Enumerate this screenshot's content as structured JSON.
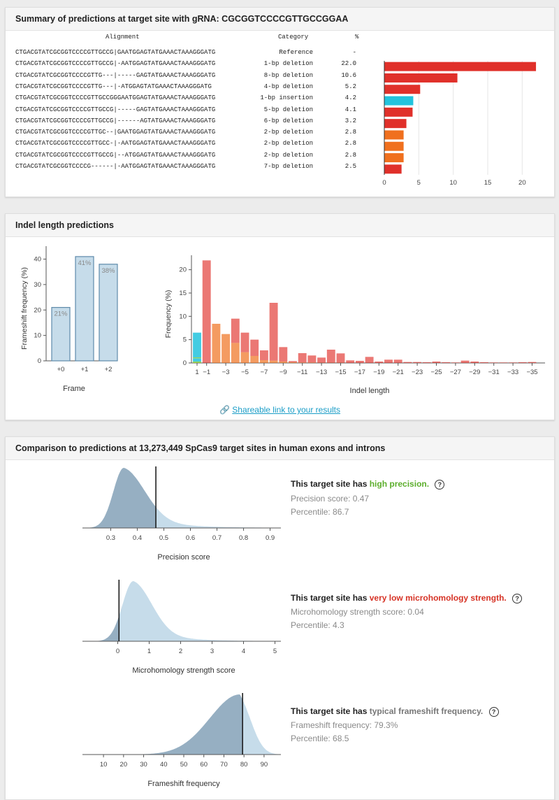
{
  "summary": {
    "title": "Summary of predictions at target site with gRNA: CGCGGTCCCCGTTGCCGGAA",
    "col_alignment": "Alignment",
    "col_category": "Category",
    "col_pct": "%",
    "rows": [
      {
        "alignment": "CTGACGTATCGCGGTCCCCGTTGCCG|GAATGGAGTATGAAACTAAAGGGATG",
        "category": "Reference",
        "pct": "-"
      },
      {
        "alignment": "CTGACGTATCGCGGTCCCCGTTGCCG|-AATGGAGTATGAAACTAAAGGGATG",
        "category": "1-bp deletion",
        "pct": "22.0"
      },
      {
        "alignment": "CTGACGTATCGCGGTCCCCGTTG---|-----GAGTATGAAACTAAAGGGATG",
        "category": "8-bp deletion",
        "pct": "10.6"
      },
      {
        "alignment": "CTGACGTATCGCGGTCCCCGTTG---|-ATGGAGTATGAAACTAAAGGGATG",
        "category": "4-bp deletion",
        "pct": "5.2"
      },
      {
        "alignment": "CTGACGTATCGCGGTCCCCGTTGCCGGGAATGGAGTATGAAACTAAAGGGATG",
        "category": "1-bp insertion",
        "pct": "4.2"
      },
      {
        "alignment": "CTGACGTATCGCGGTCCCCGTTGCCG|-----GAGTATGAAACTAAAGGGATG",
        "category": "5-bp deletion",
        "pct": "4.1"
      },
      {
        "alignment": "CTGACGTATCGCGGTCCCCGTTGCCG|------AGTATGAAACTAAAGGGATG",
        "category": "6-bp deletion",
        "pct": "3.2"
      },
      {
        "alignment": "CTGACGTATCGCGGTCCCCGTTGC--|GAATGGAGTATGAAACTAAAGGGATG",
        "category": "2-bp deletion",
        "pct": "2.8"
      },
      {
        "alignment": "CTGACGTATCGCGGTCCCCGTTGCC-|-AATGGAGTATGAAACTAAAGGGATG",
        "category": "2-bp deletion",
        "pct": "2.8"
      },
      {
        "alignment": "CTGACGTATCGCGGTCCCCGTTGCCG|--ATGGAGTATGAAACTAAAGGGATG",
        "category": "2-bp deletion",
        "pct": "2.8"
      },
      {
        "alignment": "CTGACGTATCGCGGTCCCCG------|-AATGGAGTATGAAACTAAAGGGATG",
        "category": "7-bp deletion",
        "pct": "2.5"
      }
    ]
  },
  "indel": {
    "title": "Indel length predictions",
    "share_link": "Shareable link to your results",
    "share_icon": "link-icon"
  },
  "comparison": {
    "title": "Comparison to predictions at 13,273,449 SpCas9 target sites in human exons and introns",
    "prefix": "This target site has",
    "items": [
      {
        "highlight": "high precision.",
        "line1": "Precision score: 0.47",
        "line2": "Percentile: 86.7"
      },
      {
        "highlight": "very low microhomology strength.",
        "line1": "Microhomology strength score: 0.04",
        "line2": "Percentile: 4.3"
      },
      {
        "highlight": "typical frameshift frequency.",
        "line1": "Frameshift frequency: 79.3%",
        "line2": "Percentile: 68.5"
      }
    ],
    "help_glyph": "?"
  },
  "colors": {
    "red": "#e0302a",
    "orange": "#f0701e",
    "cyan": "#22c3dd",
    "green": "#8ccc3c",
    "density_dark": "#96afc2",
    "density_light": "#c6dcea"
  },
  "chart_data": [
    {
      "type": "bar",
      "orientation": "horizontal",
      "categories": [
        "1-bp deletion",
        "8-bp deletion",
        "4-bp deletion",
        "1-bp insertion",
        "5-bp deletion",
        "6-bp deletion",
        "2-bp deletion",
        "2-bp deletion",
        "2-bp deletion",
        "7-bp deletion"
      ],
      "values": [
        22.0,
        10.6,
        5.2,
        4.2,
        4.1,
        3.2,
        2.8,
        2.8,
        2.8,
        2.5
      ],
      "colors": [
        "red",
        "red",
        "red",
        "cyan",
        "red",
        "red",
        "orange",
        "orange",
        "orange",
        "red"
      ],
      "xlim": [
        0,
        22.5
      ],
      "xticks": [
        0,
        5,
        10,
        15,
        20
      ]
    },
    {
      "type": "bar",
      "title": "",
      "categories": [
        "+0",
        "+1",
        "+2"
      ],
      "values": [
        21,
        41,
        38
      ],
      "data_labels": [
        "21%",
        "41%",
        "38%"
      ],
      "ylabel": "Frameshift frequency (%)",
      "xlabel": "Frame",
      "ylim": [
        0,
        44
      ],
      "yticks": [
        0,
        10,
        20,
        30,
        40
      ]
    },
    {
      "type": "bar",
      "stacked": true,
      "xlabel": "Indel length",
      "ylabel": "Frequency (%)",
      "ylim": [
        0,
        22.5
      ],
      "yticks": [
        0,
        5,
        10,
        15,
        20
      ],
      "xticks": [
        "1",
        "−1",
        "−3",
        "−5",
        "−7",
        "−9",
        "−11",
        "−13",
        "−15",
        "−17",
        "−19",
        "−21",
        "−23",
        "−25",
        "−27",
        "−29",
        "−31",
        "−33",
        "−35"
      ],
      "insertion": {
        "x": "1",
        "segments": [
          {
            "color": "green",
            "value": 0.3
          },
          {
            "color": "cyan",
            "value": 0.7
          },
          {
            "color": "green",
            "value": 0.2
          },
          {
            "color": "cyan",
            "value": 5.3
          }
        ]
      },
      "deletions": {
        "x": [
          -1,
          -2,
          -3,
          -4,
          -5,
          -6,
          -7,
          -8,
          -9,
          -10,
          -11,
          -12,
          -13,
          -14,
          -15,
          -16,
          -17,
          -18,
          -19,
          -20,
          -21,
          -22,
          -23,
          -24,
          -25,
          -26,
          -27,
          -28,
          -29,
          -30,
          -31,
          -32,
          -33,
          -34,
          -35
        ],
        "orange": [
          0,
          8.4,
          6.2,
          4.3,
          2.3,
          1.5,
          0.6,
          0.5,
          0.3,
          0.15,
          0.1,
          0.1,
          0.05,
          0.05,
          0.05,
          0,
          0,
          0,
          0,
          0,
          0,
          0,
          0,
          0,
          0,
          0,
          0,
          0,
          0,
          0,
          0,
          0,
          0,
          0,
          0
        ],
        "red": [
          22.0,
          0,
          0,
          5.2,
          4.2,
          3.5,
          2.1,
          12.4,
          3.1,
          0.25,
          2.0,
          1.5,
          1.1,
          2.8,
          2.0,
          0.55,
          0.45,
          1.3,
          0.3,
          0.7,
          0.7,
          0.2,
          0.2,
          0.15,
          0.3,
          0.15,
          0.1,
          0.5,
          0.3,
          0.15,
          0.1,
          0.1,
          0.1,
          0.15,
          0.2
        ]
      }
    },
    {
      "type": "area",
      "xlabel": "Precision score",
      "xticks": [
        0.3,
        0.4,
        0.5,
        0.6,
        0.7,
        0.8,
        0.9
      ],
      "xlim": [
        0.22,
        0.93
      ],
      "marker": 0.47,
      "peak": 0.35,
      "spread_left": 0.04,
      "spread_right": 0.08,
      "tail": 0.15
    },
    {
      "type": "area",
      "xlabel": "Microhomology strength score",
      "xticks": [
        0,
        1,
        2,
        3,
        4,
        5
      ],
      "xlim": [
        -0.9,
        5.1
      ],
      "marker": 0.04,
      "peak": 0.5,
      "spread_left": 0.35,
      "spread_right": 0.6,
      "tail": 1.1
    },
    {
      "type": "area",
      "xlabel": "Frameshift frequency",
      "xticks": [
        10,
        20,
        30,
        40,
        50,
        60,
        70,
        80,
        90
      ],
      "xlim": [
        3,
        97
      ],
      "marker": 79.3,
      "peak": 78,
      "spread_left": 15,
      "spread_right": 6,
      "tail": 3
    }
  ]
}
